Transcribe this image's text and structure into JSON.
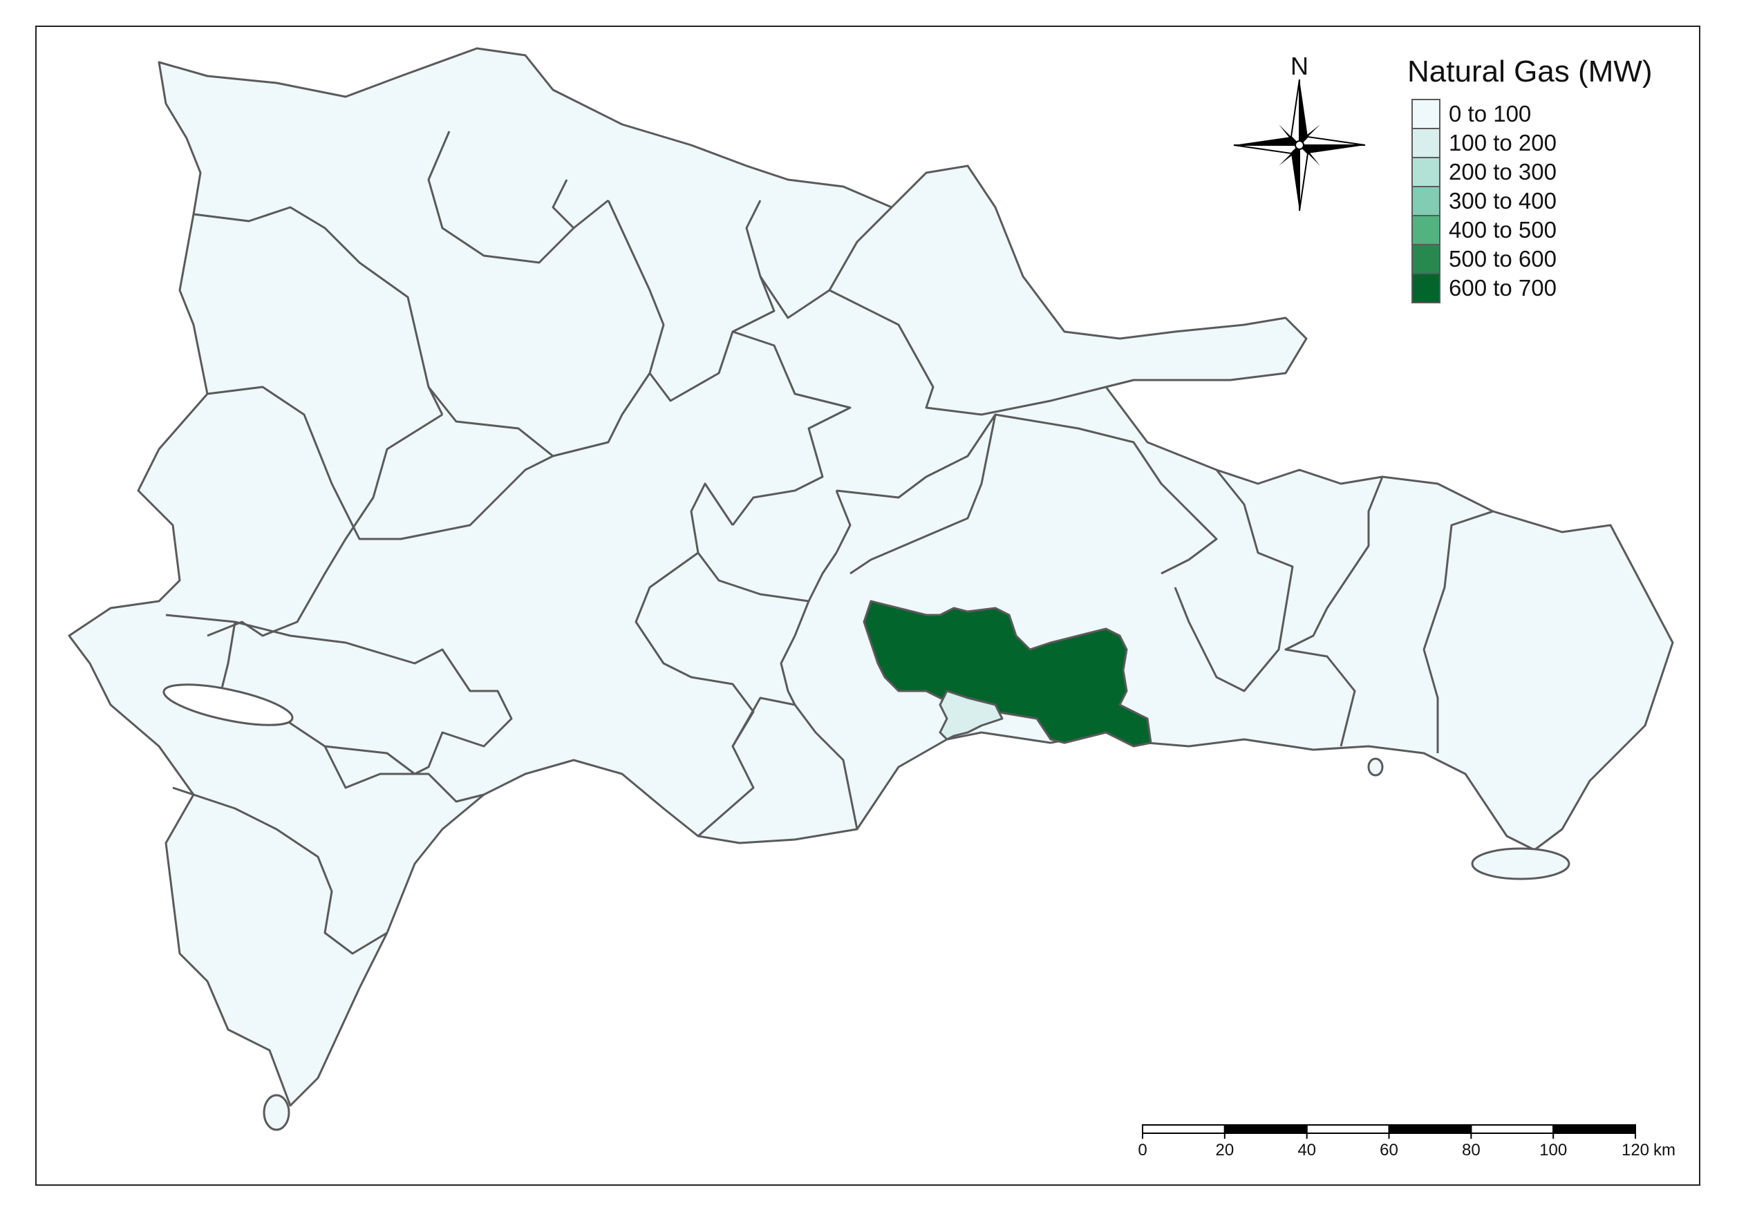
{
  "legend": {
    "title": "Natural Gas (MW)",
    "classes": [
      {
        "label": "0 to 100",
        "color": "#eff8fb"
      },
      {
        "label": "100 to 200",
        "color": "#d8efee"
      },
      {
        "label": "200 to 300",
        "color": "#b2e2d6"
      },
      {
        "label": "300 to 400",
        "color": "#81ccb2"
      },
      {
        "label": "400 to 500",
        "color": "#50b380"
      },
      {
        "label": "500 to 600",
        "color": "#28894f"
      },
      {
        "label": "600 to 700",
        "color": "#02652b"
      }
    ]
  },
  "north_arrow": {
    "label": "N",
    "icon": "compass-rose-icon"
  },
  "scale_bar": {
    "ticks": [
      "0",
      "20",
      "40",
      "60",
      "80",
      "100",
      "120"
    ],
    "unit": "km"
  },
  "colors": {
    "border": "#5a5a5a",
    "base_fill": "#eff8fb",
    "highlight_fill": "#02652b",
    "secondary_fill": "#d8efee"
  }
}
